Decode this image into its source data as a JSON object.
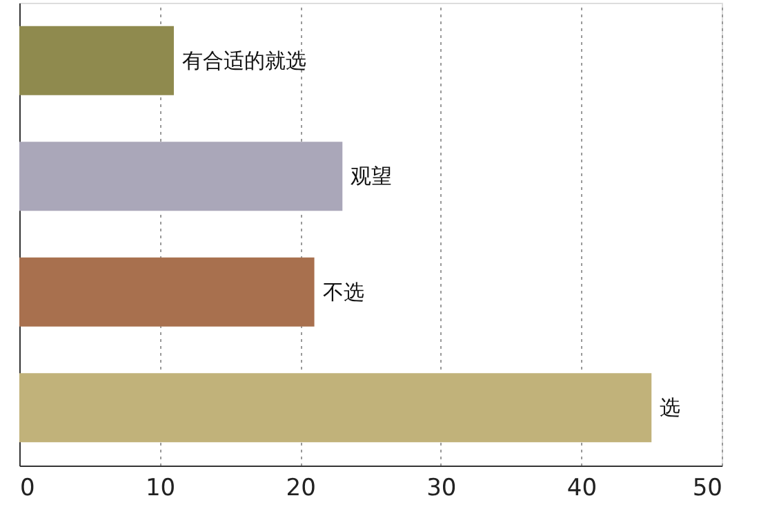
{
  "chart_data": {
    "type": "bar",
    "orientation": "horizontal",
    "categories": [
      "有合适的就选",
      "观望",
      "不选",
      "选"
    ],
    "values": [
      11,
      23,
      21,
      45
    ],
    "colors": [
      "#8f8a4e",
      "#aaa7b9",
      "#a8704e",
      "#c1b27a"
    ],
    "xlim": [
      0,
      50
    ],
    "xticks": [
      0,
      10,
      20,
      30,
      40,
      50
    ],
    "grid": "x",
    "tick_labels": "x"
  }
}
